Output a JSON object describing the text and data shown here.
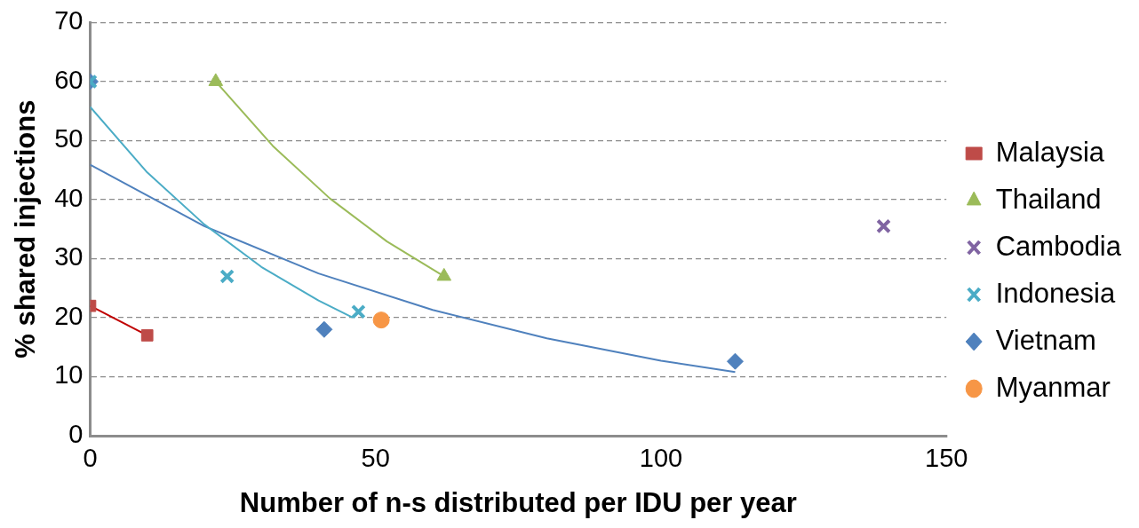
{
  "chart_data": {
    "type": "scatter",
    "xlabel": "Number of n-s distributed per IDU per year",
    "ylabel": "% shared injections",
    "xlim": [
      0,
      150
    ],
    "xticks": [
      0,
      50,
      100,
      150
    ],
    "ylim": [
      0,
      70
    ],
    "yticks": [
      0,
      10,
      20,
      30,
      40,
      50,
      60,
      70
    ],
    "grid": "y",
    "legend": "right",
    "series": [
      {
        "name": "Malaysia",
        "color": "#be4b48",
        "marker": "square",
        "x": [
          0,
          10
        ],
        "values": [
          22,
          17
        ]
      },
      {
        "name": "Thailand",
        "color": "#9bbb59",
        "marker": "triangle",
        "x": [
          22,
          62
        ],
        "values": [
          60,
          27
        ]
      },
      {
        "name": "Cambodia",
        "color": "#8064a2",
        "marker": "cross",
        "x": [
          139
        ],
        "values": [
          35.5
        ]
      },
      {
        "name": "Indonesia",
        "color": "#4bacc6",
        "marker": "cross",
        "x": [
          0,
          24,
          47
        ],
        "values": [
          60,
          27,
          21
        ]
      },
      {
        "name": "Vietnam",
        "color": "#4f81bd",
        "marker": "diamond",
        "x": [
          0,
          41,
          113
        ],
        "values": [
          60,
          18,
          12.6
        ]
      },
      {
        "name": "Myanmar",
        "color": "#f79646",
        "marker": "circle",
        "x": [
          51
        ],
        "values": [
          19.6
        ]
      },
      {
        "type": "line",
        "color": "#c00000",
        "marker": "none",
        "x": [
          0,
          10
        ],
        "values": [
          22,
          17
        ]
      },
      {
        "type": "line",
        "color": "#9bbb59",
        "marker": "none",
        "x": [
          22,
          32,
          42,
          52,
          62
        ],
        "values": [
          60,
          49.1,
          40.2,
          32.9,
          27
        ]
      },
      {
        "type": "line",
        "color": "#4bacc6",
        "marker": "none",
        "x": [
          0,
          10,
          20,
          30,
          40,
          46
        ],
        "values": [
          55.7,
          44.6,
          35.8,
          28.6,
          22.9,
          20
        ]
      },
      {
        "type": "line",
        "color": "#4f81bd",
        "marker": "none",
        "x": [
          0,
          20,
          40,
          60,
          80,
          100,
          113
        ],
        "values": [
          45.9,
          35.5,
          27.5,
          21.3,
          16.5,
          12.7,
          10.8
        ]
      }
    ]
  }
}
